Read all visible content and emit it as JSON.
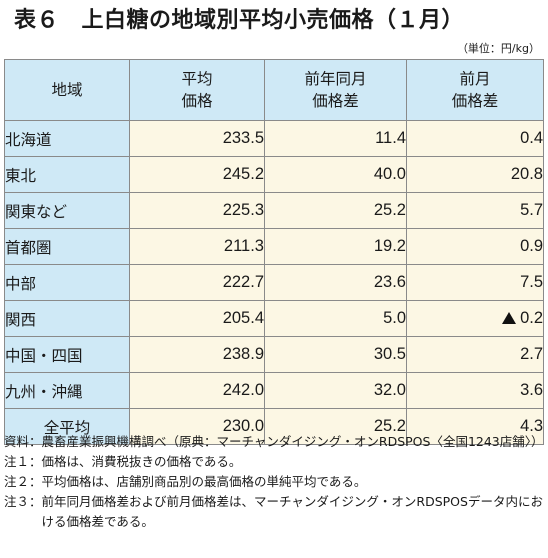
{
  "title": "表６　上白糖の地域別平均小売価格（１月）",
  "unit": "（単位：円/kg）",
  "table": {
    "headers": {
      "region": "地域",
      "avg_line1": "平均",
      "avg_line2": "価格",
      "yoy_line1": "前年同月",
      "yoy_line2": "価格差",
      "mom_line1": "前月",
      "mom_line2": "価格差"
    },
    "rows": [
      {
        "region": "北海道",
        "avg": "233.5",
        "yoy": "11.4",
        "mom": "0.4",
        "mom_negative": false
      },
      {
        "region": "東北",
        "avg": "245.2",
        "yoy": "40.0",
        "mom": "20.8",
        "mom_negative": false
      },
      {
        "region": "関東など",
        "avg": "225.3",
        "yoy": "25.2",
        "mom": "5.7",
        "mom_negative": false
      },
      {
        "region": "首都圏",
        "avg": "211.3",
        "yoy": "19.2",
        "mom": "0.9",
        "mom_negative": false
      },
      {
        "region": "中部",
        "avg": "222.7",
        "yoy": "23.6",
        "mom": "7.5",
        "mom_negative": false
      },
      {
        "region": "関西",
        "avg": "205.4",
        "yoy": "5.0",
        "mom": "0.2",
        "mom_negative": true
      },
      {
        "region": "中国・四国",
        "avg": "238.9",
        "yoy": "30.5",
        "mom": "2.7",
        "mom_negative": false
      },
      {
        "region": "九州・沖縄",
        "avg": "242.0",
        "yoy": "32.0",
        "mom": "3.6",
        "mom_negative": false
      }
    ],
    "total": {
      "region": "全平均",
      "avg": "230.0",
      "yoy": "25.2",
      "mom": "4.3"
    }
  },
  "notes": [
    {
      "label": "資料：",
      "text": "農畜産業振興機構調べ（原典：マーチャンダイジング・オンRDSPOS〈全国1243店舗〉）"
    },
    {
      "label": "注１：",
      "text": "価格は、消費税抜きの価格である。"
    },
    {
      "label": "注２：",
      "text": "平均価格は、店舗別商品別の最高価格の単純平均である。"
    },
    {
      "label": "注３：",
      "text": "前年同月価格差および前月価格差は、マーチャンダイジング・オンRDSPOSデータ内における価格差である。"
    }
  ]
}
